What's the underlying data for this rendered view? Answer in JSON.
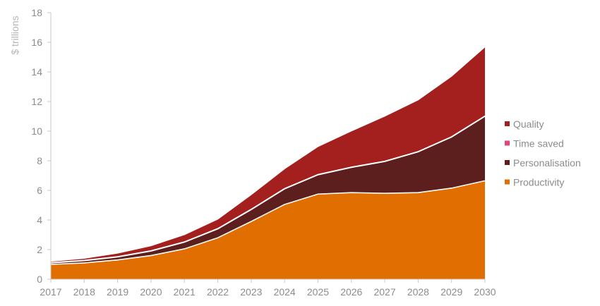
{
  "chart_data": {
    "type": "area",
    "stacked": true,
    "ylabel": "$ trillions",
    "xlabel": "",
    "ylim": [
      0,
      18
    ],
    "yticks": [
      0,
      2,
      4,
      6,
      8,
      10,
      12,
      14,
      16,
      18
    ],
    "x": [
      "2017",
      "2018",
      "2019",
      "2020",
      "2021",
      "2022",
      "2023",
      "2024",
      "2025",
      "2026",
      "2027",
      "2028",
      "2029",
      "2030"
    ],
    "series": [
      {
        "name": "Productivity",
        "color": "#e06e00",
        "values": [
          1.0,
          1.1,
          1.3,
          1.6,
          2.05,
          2.8,
          3.9,
          5.05,
          5.75,
          5.85,
          5.8,
          5.85,
          6.15,
          6.65
        ]
      },
      {
        "name": "Personalisation",
        "color": "#5c1f1d",
        "values": [
          0.1,
          0.15,
          0.2,
          0.3,
          0.45,
          0.6,
          0.8,
          1.05,
          1.3,
          1.7,
          2.15,
          2.75,
          3.45,
          4.35
        ]
      },
      {
        "name": "Time saved",
        "color": "#e0457b",
        "values": [
          0.02,
          0.02,
          0.02,
          0.02,
          0.02,
          0.02,
          0.02,
          0.02,
          0.02,
          0.02,
          0.02,
          0.02,
          0.02,
          0.02
        ]
      },
      {
        "name": "Quality",
        "color": "#a3201e",
        "values": [
          0.1,
          0.15,
          0.25,
          0.35,
          0.5,
          0.65,
          1.0,
          1.35,
          1.9,
          2.45,
          3.05,
          3.5,
          4.1,
          4.68
        ]
      }
    ],
    "legend": {
      "placement": "right",
      "items": [
        "Quality",
        "Time saved",
        "Personalisation",
        "Productivity"
      ]
    },
    "grid": false
  }
}
